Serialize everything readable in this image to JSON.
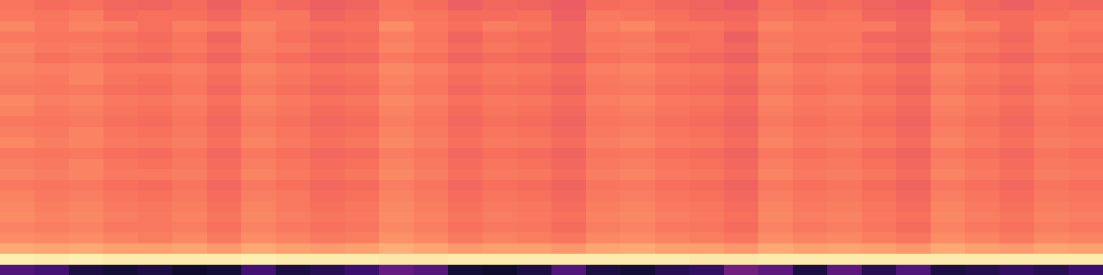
{
  "chart_data": {
    "type": "heatmap",
    "tick_labels": false,
    "zlim": [
      0,
      100
    ],
    "cells": [
      [
        71,
        69,
        70,
        68,
        67,
        69,
        66,
        70,
        68,
        66,
        67,
        71,
        69,
        66,
        68,
        67,
        65,
        69,
        70,
        68,
        67,
        65,
        70,
        68,
        69,
        67,
        65,
        70,
        68,
        66,
        69,
        68
      ],
      [
        72,
        71,
        73,
        69,
        70,
        70,
        68,
        71,
        71,
        67,
        69,
        72,
        71,
        69,
        69,
        70,
        66,
        72,
        71,
        70,
        68,
        68,
        71,
        70,
        71,
        68,
        67,
        73,
        69,
        69,
        70,
        71
      ],
      [
        75,
        72,
        74,
        73,
        70,
        73,
        71,
        74,
        71,
        70,
        70,
        76,
        72,
        70,
        73,
        71,
        68,
        73,
        75,
        71,
        71,
        69,
        74,
        72,
        72,
        72,
        68,
        74,
        73,
        69,
        73,
        72
      ],
      [
        72,
        71,
        71,
        70,
        69,
        71,
        67,
        73,
        70,
        68,
        69,
        73,
        71,
        67,
        70,
        69,
        68,
        71,
        72,
        69,
        70,
        66,
        72,
        71,
        71,
        68,
        67,
        71,
        70,
        68,
        72,
        70
      ],
      [
        74,
        72,
        73,
        71,
        70,
        72,
        69,
        73,
        72,
        69,
        70,
        74,
        72,
        69,
        71,
        70,
        68,
        72,
        73,
        71,
        70,
        68,
        73,
        71,
        72,
        70,
        68,
        73,
        71,
        69,
        72,
        71
      ],
      [
        73,
        70,
        71,
        69,
        68,
        70,
        67,
        71,
        69,
        67,
        68,
        72,
        70,
        67,
        69,
        68,
        66,
        70,
        71,
        69,
        68,
        66,
        71,
        69,
        70,
        68,
        66,
        71,
        69,
        67,
        70,
        69
      ],
      [
        74,
        73,
        74,
        72,
        72,
        73,
        70,
        74,
        72,
        70,
        71,
        75,
        73,
        70,
        72,
        71,
        69,
        73,
        74,
        72,
        71,
        69,
        74,
        72,
        73,
        71,
        69,
        74,
        72,
        70,
        73,
        72
      ],
      [
        73,
        72,
        74,
        71,
        70,
        72,
        69,
        73,
        71,
        69,
        70,
        74,
        72,
        69,
        71,
        70,
        68,
        72,
        73,
        71,
        70,
        68,
        73,
        71,
        72,
        70,
        68,
        73,
        71,
        69,
        72,
        71
      ],
      [
        72,
        71,
        72,
        70,
        69,
        71,
        68,
        72,
        70,
        68,
        69,
        73,
        71,
        68,
        70,
        69,
        67,
        71,
        72,
        70,
        69,
        67,
        72,
        70,
        71,
        69,
        67,
        72,
        70,
        68,
        71,
        70
      ],
      [
        75,
        73,
        74,
        72,
        71,
        73,
        70,
        74,
        72,
        70,
        71,
        75,
        73,
        70,
        72,
        71,
        69,
        73,
        74,
        72,
        71,
        69,
        74,
        72,
        73,
        71,
        69,
        74,
        72,
        70,
        73,
        72
      ],
      [
        74,
        72,
        73,
        71,
        70,
        72,
        69,
        73,
        71,
        69,
        70,
        74,
        72,
        69,
        71,
        70,
        68,
        72,
        73,
        71,
        70,
        68,
        73,
        71,
        72,
        70,
        68,
        73,
        71,
        69,
        72,
        71
      ],
      [
        72,
        71,
        72,
        70,
        69,
        71,
        68,
        72,
        70,
        68,
        69,
        73,
        71,
        68,
        70,
        69,
        67,
        71,
        72,
        70,
        69,
        67,
        72,
        70,
        71,
        69,
        67,
        72,
        70,
        68,
        71,
        70
      ],
      [
        73,
        72,
        74,
        71,
        70,
        72,
        69,
        73,
        71,
        69,
        70,
        74,
        72,
        69,
        71,
        70,
        68,
        72,
        73,
        71,
        70,
        68,
        73,
        71,
        72,
        70,
        68,
        73,
        71,
        69,
        72,
        71
      ],
      [
        75,
        73,
        74,
        72,
        71,
        73,
        70,
        74,
        72,
        70,
        71,
        75,
        73,
        70,
        72,
        71,
        69,
        73,
        74,
        72,
        71,
        69,
        74,
        72,
        73,
        71,
        69,
        74,
        72,
        70,
        73,
        72
      ],
      [
        72,
        71,
        72,
        70,
        69,
        71,
        68,
        72,
        70,
        68,
        69,
        73,
        71,
        68,
        70,
        69,
        67,
        71,
        72,
        70,
        69,
        67,
        72,
        70,
        71,
        69,
        67,
        72,
        70,
        68,
        71,
        70
      ],
      [
        73,
        72,
        74,
        71,
        70,
        72,
        69,
        73,
        71,
        69,
        70,
        74,
        72,
        69,
        71,
        70,
        68,
        72,
        73,
        71,
        70,
        68,
        73,
        71,
        72,
        70,
        68,
        73,
        71,
        69,
        72,
        71
      ],
      [
        74,
        73,
        74,
        72,
        72,
        73,
        70,
        74,
        72,
        70,
        71,
        75,
        73,
        70,
        72,
        71,
        69,
        73,
        74,
        72,
        71,
        69,
        74,
        72,
        73,
        71,
        69,
        74,
        72,
        70,
        73,
        72
      ],
      [
        72,
        71,
        72,
        70,
        69,
        71,
        68,
        72,
        70,
        68,
        69,
        73,
        71,
        68,
        70,
        69,
        67,
        71,
        72,
        70,
        69,
        67,
        72,
        70,
        71,
        69,
        67,
        72,
        70,
        68,
        71,
        70
      ],
      [
        74,
        72,
        73,
        71,
        70,
        72,
        69,
        73,
        72,
        69,
        70,
        74,
        72,
        69,
        71,
        70,
        68,
        72,
        73,
        71,
        70,
        68,
        73,
        71,
        72,
        70,
        68,
        73,
        71,
        69,
        72,
        71
      ],
      [
        75,
        73,
        74,
        72,
        71,
        73,
        70,
        74,
        72,
        70,
        71,
        75,
        73,
        70,
        72,
        71,
        69,
        73,
        74,
        72,
        71,
        69,
        74,
        72,
        73,
        71,
        69,
        74,
        72,
        70,
        73,
        72
      ],
      [
        76,
        74,
        75,
        73,
        72,
        74,
        71,
        75,
        73,
        71,
        72,
        76,
        74,
        71,
        73,
        72,
        70,
        74,
        75,
        73,
        72,
        70,
        75,
        73,
        74,
        72,
        70,
        75,
        73,
        71,
        74,
        73
      ],
      [
        74,
        73,
        74,
        72,
        72,
        73,
        70,
        74,
        72,
        70,
        71,
        75,
        73,
        70,
        72,
        71,
        69,
        73,
        74,
        72,
        71,
        69,
        74,
        72,
        73,
        71,
        69,
        74,
        72,
        70,
        73,
        72
      ],
      [
        76,
        75,
        76,
        74,
        73,
        75,
        72,
        76,
        74,
        72,
        73,
        77,
        75,
        72,
        74,
        73,
        71,
        75,
        76,
        74,
        73,
        71,
        76,
        74,
        75,
        73,
        71,
        76,
        74,
        72,
        75,
        74
      ],
      [
        82,
        81,
        82,
        80,
        80,
        81,
        79,
        82,
        80,
        79,
        80,
        83,
        81,
        79,
        80,
        80,
        78,
        81,
        82,
        80,
        80,
        78,
        82,
        80,
        81,
        80,
        78,
        82,
        80,
        79,
        81,
        80
      ],
      [
        97,
        96,
        97,
        96,
        96,
        96,
        96,
        97,
        96,
        96,
        96,
        95,
        95,
        96,
        96,
        96,
        96,
        96,
        96,
        96,
        95,
        95,
        96,
        96,
        96,
        96,
        96,
        96,
        96,
        96,
        96,
        96
      ],
      [
        25,
        22,
        12,
        10,
        12,
        8,
        10,
        22,
        12,
        15,
        20,
        30,
        26,
        10,
        8,
        12,
        25,
        12,
        10,
        15,
        18,
        33,
        28,
        12,
        28,
        15,
        25,
        12,
        14,
        18,
        15,
        20
      ]
    ]
  }
}
